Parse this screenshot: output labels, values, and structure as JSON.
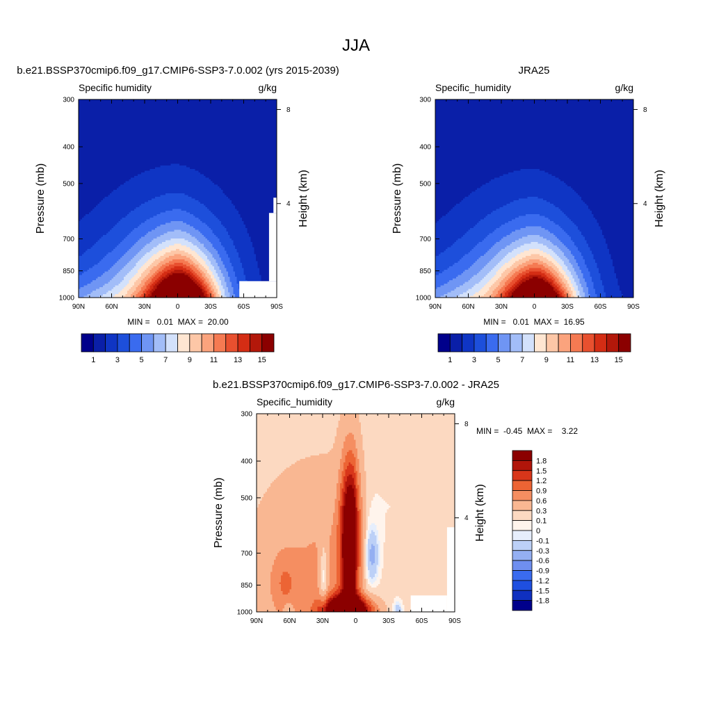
{
  "page_title": "JJA",
  "chart_data": [
    {
      "type": "heatmap",
      "title": "b.e21.BSSP370cmip6.f09_g17.CMIP6-SSP3-7.0.002 (yrs 2015-2039)",
      "left_label": "Specific humidity",
      "right_label": "g/kg",
      "ylabel": "Pressure (mb)",
      "ylabel_right": "Height (km)",
      "x_ticks": [
        "90N",
        "60N",
        "30N",
        "0",
        "30S",
        "60S",
        "90S"
      ],
      "y_ticks": [
        300,
        400,
        500,
        700,
        850,
        1000
      ],
      "height_ticks": [
        8,
        4
      ],
      "scale": "log-pressure",
      "min_max_text": "MIN =   0.01  MAX =  20.00",
      "field": "sh_model",
      "colorbar_labels": [
        "1",
        "3",
        "5",
        "7",
        "9",
        "11",
        "13",
        "15"
      ],
      "levels": [
        0,
        1,
        2,
        3,
        4,
        5,
        6,
        7,
        8,
        9,
        10,
        11,
        12,
        13,
        14,
        15
      ]
    },
    {
      "type": "heatmap",
      "title": "JRA25",
      "left_label": "Specific_humidity",
      "right_label": "g/kg",
      "ylabel": "Pressure (mb)",
      "ylabel_right": "Height (km)",
      "x_ticks": [
        "90N",
        "60N",
        "30N",
        "0",
        "30S",
        "60S",
        "90S"
      ],
      "y_ticks": [
        300,
        400,
        500,
        700,
        850,
        1000
      ],
      "height_ticks": [
        8,
        4
      ],
      "scale": "log-pressure",
      "min_max_text": "MIN =   0.01  MAX =  16.95",
      "field": "sh_obs",
      "colorbar_labels": [
        "1",
        "3",
        "5",
        "7",
        "9",
        "11",
        "13",
        "15"
      ],
      "levels": [
        0,
        1,
        2,
        3,
        4,
        5,
        6,
        7,
        8,
        9,
        10,
        11,
        12,
        13,
        14,
        15
      ]
    },
    {
      "type": "heatmap",
      "title": "b.e21.BSSP370cmip6.f09_g17.CMIP6-SSP3-7.0.002 - JRA25",
      "left_label": "Specific_humidity",
      "right_label": "g/kg",
      "ylabel": "Pressure (mb)",
      "ylabel_right": "Height (km)",
      "x_ticks": [
        "90N",
        "60N",
        "30N",
        "0",
        "30S",
        "60S",
        "90S"
      ],
      "y_ticks": [
        300,
        400,
        500,
        700,
        850,
        1000
      ],
      "height_ticks": [
        8,
        4
      ],
      "scale": "log-pressure",
      "min_max_text": "MIN =  -0.45  MAX =    3.22",
      "field": "sh_diff",
      "colorbar_labels": [
        "1.8",
        "1.5",
        "1.2",
        "0.9",
        "0.6",
        "0.3",
        "0.1",
        "0",
        "-0.1",
        "-0.3",
        "-0.6",
        "-0.9",
        "-1.2",
        "-1.5",
        "-1.8"
      ],
      "levels": [
        -1.8,
        -1.5,
        -1.2,
        -0.9,
        -0.6,
        -0.3,
        -0.1,
        0,
        0.1,
        0.3,
        0.6,
        0.9,
        1.2,
        1.5,
        1.8
      ]
    }
  ],
  "colors": {
    "abs_palette": [
      "#00008b",
      "#0a1fa8",
      "#0f35c4",
      "#1d4fdb",
      "#3a6bef",
      "#6f95f4",
      "#a2bdf8",
      "#d3e1fb",
      "#ffe6d2",
      "#fdc7a7",
      "#fba37d",
      "#f57a52",
      "#e8502f",
      "#d42d14",
      "#b3180a",
      "#8b0000"
    ],
    "diff_palette": [
      "#00008b",
      "#0f30c0",
      "#1f4fe0",
      "#3a6bef",
      "#6f8ff0",
      "#94aff2",
      "#bcd0f7",
      "#e6eefc",
      "#fff4ec",
      "#fcd9c1",
      "#f9b792",
      "#f58e61",
      "#ec6434",
      "#d8361a",
      "#b1150a",
      "#8b0000"
    ]
  }
}
